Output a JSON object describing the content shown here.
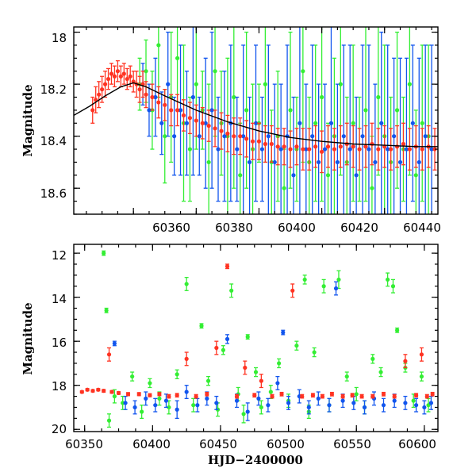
{
  "colors": {
    "green": "#33ee33",
    "blue": "#1155ee",
    "red": "#ff3322",
    "model_line": "#000000"
  },
  "chart_data": [
    {
      "type": "scatter",
      "id": "top",
      "xlabel": "",
      "ylabel": "Magnitude",
      "xlim": [
        60341,
        60457
      ],
      "ylim": [
        18.7,
        17.98
      ],
      "y_inverted": true,
      "x_ticks": [
        60360,
        60380,
        60400,
        60420,
        60440
      ],
      "y_ticks": [
        18,
        18.2,
        18.4,
        18.6
      ],
      "x_tick_labels": [
        "60360",
        "60380",
        "60400",
        "60420",
        "60440"
      ],
      "y_tick_labels": [
        "18",
        "18.2",
        "18.4",
        "18.6"
      ],
      "model_curve": {
        "x": [
          60341,
          60346,
          60351,
          60356,
          60360,
          60364,
          60370,
          60380,
          60390,
          60400,
          60410,
          60420,
          60430,
          60440,
          60450,
          60457
        ],
        "y": [
          18.32,
          18.285,
          18.245,
          18.21,
          18.195,
          18.21,
          18.245,
          18.3,
          18.345,
          18.38,
          18.405,
          18.42,
          18.43,
          18.435,
          18.44,
          18.44
        ]
      },
      "series": [
        {
          "color_key": "green",
          "x": [
            60362,
            60364,
            60366,
            60368,
            60370,
            60372,
            60374,
            60376,
            60378,
            60380,
            60382,
            60384,
            60386,
            60388,
            60390,
            60392,
            60394,
            60396,
            60398,
            60400,
            60402,
            60404,
            60406,
            60408,
            60410,
            60412,
            60414,
            60416,
            60418,
            60420,
            60422,
            60424,
            60426,
            60428,
            60430,
            60432,
            60434,
            60436,
            60438,
            60440,
            60442,
            60444,
            60446,
            60448,
            60450,
            60452,
            60454
          ],
          "y": [
            18.2,
            18.15,
            18.3,
            18.05,
            18.4,
            18.25,
            18.1,
            18.35,
            18.45,
            18.2,
            18.3,
            18.5,
            18.15,
            18.35,
            18.4,
            18.25,
            18.55,
            18.3,
            18.45,
            18.35,
            18.2,
            18.5,
            18.4,
            18.6,
            18.3,
            18.45,
            18.15,
            18.5,
            18.35,
            18.25,
            18.55,
            18.4,
            18.2,
            18.5,
            18.35,
            18.45,
            18.3,
            18.6,
            18.25,
            18.4,
            18.5,
            18.3,
            18.45,
            18.2,
            18.55,
            18.35,
            18.4
          ],
          "err": [
            0.1,
            0.12,
            0.15,
            0.2,
            0.18,
            0.25,
            0.2,
            0.3,
            0.2,
            0.25,
            0.15,
            0.3,
            0.25,
            0.2,
            0.3,
            0.35,
            0.2,
            0.3,
            0.25,
            0.15,
            0.3,
            0.2,
            0.25,
            0.15,
            0.3,
            0.2,
            0.35,
            0.25,
            0.3,
            0.4,
            0.2,
            0.3,
            0.35,
            0.25,
            0.3,
            0.2,
            0.35,
            0.2,
            0.3,
            0.35,
            0.25,
            0.3,
            0.2,
            0.35,
            0.25,
            0.3,
            0.35
          ]
        },
        {
          "color_key": "blue",
          "x": [
            60363,
            60365,
            60367,
            60369,
            60371,
            60373,
            60375,
            60377,
            60379,
            60381,
            60383,
            60385,
            60387,
            60389,
            60391,
            60393,
            60395,
            60397,
            60399,
            60401,
            60403,
            60405,
            60407,
            60409,
            60411,
            60413,
            60415,
            60417,
            60419,
            60421,
            60423,
            60425,
            60427,
            60429,
            60431,
            60433,
            60435,
            60437,
            60439,
            60441,
            60443,
            60445,
            60447,
            60449,
            60451,
            60453,
            60455
          ],
          "y": [
            18.2,
            18.3,
            18.25,
            18.35,
            18.2,
            18.4,
            18.3,
            18.35,
            18.25,
            18.4,
            18.35,
            18.3,
            18.45,
            18.4,
            18.35,
            18.45,
            18.4,
            18.5,
            18.35,
            18.45,
            18.4,
            18.5,
            18.45,
            18.4,
            18.55,
            18.35,
            18.45,
            18.4,
            18.5,
            18.45,
            18.35,
            18.5,
            18.4,
            18.45,
            18.55,
            18.4,
            18.45,
            18.5,
            18.35,
            18.45,
            18.4,
            18.5,
            18.45,
            18.35,
            18.5,
            18.4,
            18.45
          ],
          "err": [
            0.08,
            0.1,
            0.15,
            0.12,
            0.2,
            0.15,
            0.25,
            0.2,
            0.3,
            0.15,
            0.25,
            0.3,
            0.2,
            0.25,
            0.3,
            0.2,
            0.35,
            0.25,
            0.3,
            0.2,
            0.35,
            0.3,
            0.25,
            0.35,
            0.3,
            0.4,
            0.25,
            0.35,
            0.3,
            0.25,
            0.4,
            0.3,
            0.35,
            0.4,
            0.3,
            0.35,
            0.4,
            0.3,
            0.35,
            0.4,
            0.3,
            0.4,
            0.35,
            0.3,
            0.4,
            0.35,
            0.4
          ]
        },
        {
          "color_key": "red",
          "x": [
            60347,
            60348,
            60349,
            60350,
            60351,
            60352,
            60353,
            60354,
            60355,
            60356,
            60357,
            60358,
            60359,
            60360,
            60361,
            60362,
            60363,
            60364,
            60366,
            60368,
            60370,
            60372,
            60374,
            60376,
            60378,
            60380,
            60382,
            60384,
            60386,
            60388,
            60390,
            60392,
            60394,
            60396,
            60398,
            60400,
            60402,
            60404,
            60406,
            60408,
            60410,
            60412,
            60414,
            60416,
            60418,
            60420,
            60422,
            60424,
            60426,
            60428,
            60430,
            60432,
            60434,
            60436,
            60438,
            60440,
            60442,
            60444,
            60446,
            60448,
            60450,
            60452,
            60454,
            60456
          ],
          "y": [
            18.3,
            18.26,
            18.24,
            18.22,
            18.2,
            18.18,
            18.16,
            18.17,
            18.15,
            18.17,
            18.16,
            18.18,
            18.17,
            18.19,
            18.2,
            18.22,
            18.2,
            18.24,
            18.25,
            18.27,
            18.28,
            18.3,
            18.3,
            18.32,
            18.33,
            18.34,
            18.35,
            18.36,
            18.37,
            18.38,
            18.39,
            18.4,
            18.4,
            18.41,
            18.42,
            18.42,
            18.43,
            18.43,
            18.44,
            18.44,
            18.45,
            18.44,
            18.45,
            18.45,
            18.44,
            18.46,
            18.44,
            18.45,
            18.44,
            18.43,
            18.44,
            18.45,
            18.44,
            18.43,
            18.45,
            18.44,
            18.45,
            18.44,
            18.43,
            18.45,
            18.44,
            18.45,
            18.44,
            18.45
          ],
          "err": [
            0.05,
            0.05,
            0.05,
            0.05,
            0.05,
            0.04,
            0.04,
            0.04,
            0.04,
            0.04,
            0.04,
            0.04,
            0.04,
            0.04,
            0.05,
            0.05,
            0.05,
            0.05,
            0.05,
            0.06,
            0.06,
            0.06,
            0.06,
            0.06,
            0.06,
            0.06,
            0.06,
            0.06,
            0.07,
            0.07,
            0.07,
            0.07,
            0.07,
            0.07,
            0.07,
            0.07,
            0.07,
            0.07,
            0.07,
            0.07,
            0.07,
            0.07,
            0.08,
            0.08,
            0.08,
            0.08,
            0.08,
            0.08,
            0.08,
            0.08,
            0.08,
            0.08,
            0.08,
            0.08,
            0.08,
            0.08,
            0.08,
            0.08,
            0.08,
            0.08,
            0.08,
            0.08,
            0.08,
            0.08
          ]
        }
      ]
    },
    {
      "type": "scatter",
      "id": "bottom",
      "xlabel": "HJD−2400000",
      "ylabel": "Magnitude",
      "xlim": [
        60342,
        60610
      ],
      "ylim": [
        20.1,
        11.6
      ],
      "y_inverted": true,
      "x_ticks": [
        60350,
        60400,
        60450,
        60500,
        60550,
        60600
      ],
      "y_ticks": [
        12,
        14,
        16,
        18,
        20
      ],
      "x_tick_labels": [
        "60350",
        "60400",
        "60450",
        "60500",
        "60550",
        "60600"
      ],
      "y_tick_labels": [
        "12",
        "14",
        "16",
        "18",
        "20"
      ],
      "series": [
        {
          "color_key": "green",
          "x": [
            60364,
            60366,
            60368,
            60372,
            60378,
            60385,
            60392,
            60398,
            60405,
            60412,
            60418,
            60425,
            60430,
            60436,
            60441,
            60448,
            60452,
            60458,
            60463,
            60467,
            60470,
            60476,
            60480,
            60487,
            60493,
            60500,
            60506,
            60512,
            60515,
            60519,
            60526,
            60530,
            60537,
            60543,
            60550,
            60556,
            60562,
            60568,
            60573,
            60577,
            60580,
            60586,
            60592,
            60598,
            60603
          ],
          "y": [
            12.0,
            14.6,
            19.6,
            18.5,
            18.8,
            17.6,
            19.2,
            17.9,
            18.6,
            19.0,
            17.5,
            13.4,
            18.9,
            15.3,
            17.8,
            19.1,
            16.4,
            13.7,
            18.4,
            19.3,
            15.8,
            17.4,
            19.0,
            18.3,
            17.0,
            18.7,
            16.2,
            13.2,
            19.2,
            16.5,
            13.5,
            18.9,
            13.2,
            17.6,
            18.4,
            19.0,
            16.8,
            17.4,
            13.2,
            13.5,
            15.5,
            17.2,
            18.7,
            17.6,
            18.9
          ],
          "err": [
            0.1,
            0.1,
            0.3,
            0.3,
            0.3,
            0.2,
            0.3,
            0.2,
            0.3,
            0.3,
            0.2,
            0.3,
            0.3,
            0.1,
            0.2,
            0.3,
            0.2,
            0.3,
            0.3,
            0.4,
            0.1,
            0.2,
            0.3,
            0.3,
            0.2,
            0.3,
            0.2,
            0.2,
            0.3,
            0.2,
            0.3,
            0.3,
            0.4,
            0.2,
            0.3,
            0.3,
            0.2,
            0.2,
            0.3,
            0.3,
            0.1,
            0.2,
            0.3,
            0.2,
            0.3
          ]
        },
        {
          "color_key": "blue",
          "x": [
            60372,
            60380,
            60387,
            60395,
            60402,
            60410,
            60418,
            60425,
            60433,
            60440,
            60447,
            60455,
            60462,
            60470,
            60478,
            60485,
            60492,
            60496,
            60500,
            60508,
            60515,
            60522,
            60530,
            60535,
            60540,
            60548,
            60556,
            60563,
            60570,
            60578,
            60586,
            60594,
            60600,
            60605
          ],
          "y": [
            16.1,
            18.8,
            19.0,
            18.6,
            18.9,
            18.7,
            19.1,
            18.3,
            18.9,
            18.6,
            18.8,
            15.9,
            18.7,
            19.2,
            18.6,
            18.9,
            17.9,
            15.6,
            18.8,
            18.5,
            19.0,
            18.6,
            18.9,
            13.6,
            18.7,
            18.8,
            19.0,
            18.6,
            18.9,
            18.7,
            18.8,
            18.9,
            19.0,
            18.8
          ],
          "err": [
            0.1,
            0.3,
            0.3,
            0.3,
            0.3,
            0.3,
            0.4,
            0.3,
            0.3,
            0.3,
            0.3,
            0.2,
            0.3,
            0.4,
            0.3,
            0.3,
            0.3,
            0.1,
            0.3,
            0.3,
            0.3,
            0.3,
            0.3,
            0.3,
            0.3,
            0.3,
            0.3,
            0.3,
            0.3,
            0.3,
            0.3,
            0.3,
            0.3,
            0.3
          ]
        },
        {
          "color_key": "red",
          "x": [
            60348,
            60352,
            60356,
            60360,
            60364,
            60368,
            60370,
            60375,
            60382,
            60390,
            60398,
            60405,
            60412,
            60418,
            60425,
            60432,
            60440,
            60447,
            60455,
            60462,
            60468,
            60475,
            60480,
            60488,
            60495,
            60503,
            60510,
            60518,
            60525,
            60532,
            60540,
            60547,
            60554,
            60562,
            60570,
            60578,
            60586,
            60594,
            60598,
            60602,
            60606
          ],
          "y": [
            18.3,
            18.2,
            18.25,
            18.2,
            18.25,
            16.6,
            18.3,
            18.35,
            18.4,
            18.4,
            18.45,
            18.4,
            18.5,
            18.45,
            16.8,
            18.5,
            18.4,
            16.3,
            12.6,
            18.5,
            17.2,
            18.45,
            17.8,
            18.5,
            18.4,
            13.7,
            18.5,
            18.45,
            18.5,
            18.4,
            18.5,
            18.45,
            18.5,
            18.5,
            18.4,
            18.5,
            16.9,
            18.45,
            16.6,
            18.5,
            18.4
          ],
          "err": [
            0.05,
            0.05,
            0.05,
            0.05,
            0.06,
            0.3,
            0.06,
            0.06,
            0.07,
            0.07,
            0.07,
            0.07,
            0.08,
            0.08,
            0.3,
            0.08,
            0.08,
            0.3,
            0.1,
            0.08,
            0.3,
            0.08,
            0.3,
            0.08,
            0.08,
            0.3,
            0.08,
            0.08,
            0.08,
            0.08,
            0.08,
            0.08,
            0.08,
            0.08,
            0.08,
            0.08,
            0.3,
            0.08,
            0.3,
            0.08,
            0.08
          ]
        }
      ]
    }
  ]
}
